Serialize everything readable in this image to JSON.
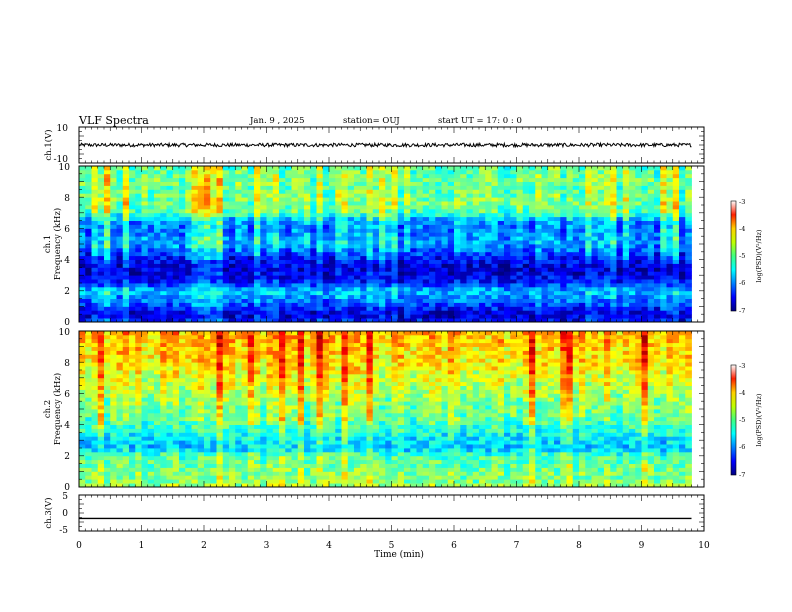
{
  "header": {
    "title": "VLF Spectra",
    "date": "Jan. 9 , 2025",
    "station": "station= OUJ",
    "start": "start UT = 17: 0 : 0"
  },
  "chart_data": [
    {
      "type": "line",
      "panel": "ch1-waveform",
      "ylabel": "ch.1(V)",
      "ylim": [
        -10,
        10
      ],
      "yticks": [
        {
          "v": 10,
          "label": "10"
        },
        {
          "v": -10,
          "label": "-10"
        }
      ],
      "xlim": [
        0,
        10
      ],
      "series": [
        {
          "x": [
            0,
            9.8
          ],
          "y": [
            0,
            0
          ],
          "amplitude_approx": 1
        }
      ]
    },
    {
      "type": "heatmap",
      "panel": "ch1-spectrogram",
      "ylabel": "ch.1\nFrequency (kHz)",
      "ylim": [
        0,
        10
      ],
      "yticks": [
        "0",
        "2",
        "4",
        "6",
        "8",
        "10"
      ],
      "xlim": [
        0,
        10
      ],
      "colorbar": {
        "label": "log(PSD)(V²/Hz)",
        "range": [
          -7,
          -3
        ],
        "ticks": [
          "-3",
          "-4",
          "-5",
          "-6",
          "-7"
        ]
      },
      "band_profile_freq_khz": [
        0,
        0.5,
        1,
        1.5,
        2,
        2.5,
        3,
        3.5,
        4,
        4.5,
        5,
        5.5,
        6,
        6.5,
        7,
        7.5,
        8,
        8.5,
        9,
        9.5,
        10
      ],
      "band_profile_logpsd": [
        -6.4,
        -6.7,
        -6.3,
        -6.0,
        -5.7,
        -6.4,
        -6.6,
        -6.7,
        -6.5,
        -6.2,
        -5.8,
        -5.9,
        -6.0,
        -5.9,
        -5.2,
        -5.0,
        -5.0,
        -5.1,
        -5.0,
        -5.1,
        -5.1
      ]
    },
    {
      "type": "heatmap",
      "panel": "ch2-spectrogram",
      "ylabel": "ch.2\nFrequency (kHz)",
      "ylim": [
        0,
        10
      ],
      "yticks": [
        "0",
        "2",
        "4",
        "6",
        "8",
        "10"
      ],
      "xlim": [
        0,
        10
      ],
      "colorbar": {
        "label": "log(PSD)(V²/Hz)",
        "range": [
          -7,
          -3
        ],
        "ticks": [
          "-3",
          "-4",
          "-5",
          "-6",
          "-7"
        ]
      },
      "band_profile_freq_khz": [
        0,
        0.5,
        1,
        1.5,
        2,
        2.5,
        3,
        3.5,
        4,
        4.5,
        5,
        5.5,
        6,
        6.5,
        7,
        7.5,
        8,
        8.5,
        9,
        9.5,
        10
      ],
      "band_profile_logpsd": [
        -4.8,
        -5.0,
        -5.0,
        -5.1,
        -5.2,
        -5.7,
        -5.6,
        -5.4,
        -5.2,
        -5.0,
        -5.0,
        -4.9,
        -4.8,
        -4.7,
        -4.6,
        -4.5,
        -4.4,
        -4.3,
        -4.3,
        -4.2,
        -4.2
      ]
    },
    {
      "type": "line",
      "panel": "ch3-waveform",
      "ylabel": "ch.3(V)",
      "ylim": [
        -5,
        5
      ],
      "yticks": [
        {
          "v": 5,
          "label": "5"
        },
        {
          "v": 0,
          "label": "0"
        },
        {
          "v": -5,
          "label": "-5"
        }
      ],
      "xlim": [
        0,
        10
      ],
      "xlabel": "Time (min)",
      "xticks": [
        "0",
        "1",
        "2",
        "3",
        "4",
        "5",
        "6",
        "7",
        "8",
        "9",
        "10"
      ],
      "series": [
        {
          "x": [
            0,
            9.8
          ],
          "y": [
            -1.5,
            -1.5
          ]
        }
      ]
    }
  ],
  "colors": {
    "waveform": "#000000",
    "axis": "#000000"
  }
}
